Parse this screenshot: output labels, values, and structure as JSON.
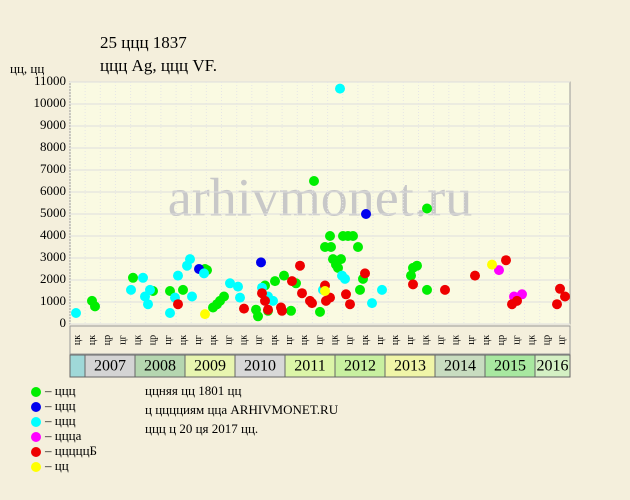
{
  "chart_data": {
    "type": "scatter",
    "title": "25 ццц 1837",
    "subtitle": "ццц Ag, ццц VF.",
    "y_label": "цц, цц",
    "watermark": "arhivmonet.ru",
    "xlim": [
      2006.7,
      2016.7
    ],
    "ylim": [
      0,
      11000
    ],
    "yticks": [
      0,
      1000,
      2000,
      3000,
      4000,
      5000,
      6000,
      7000,
      8000,
      9000,
      10000,
      11000
    ],
    "grid": true,
    "period_labels": [
      "цк",
      "цк",
      "цр",
      "цг",
      "цк",
      "цр",
      "цг",
      "цк",
      "цг",
      "цк",
      "цг",
      "цк",
      "цг",
      "цк",
      "цг",
      "цк",
      "цг",
      "цк",
      "цг",
      "цк",
      "цг",
      "цк",
      "цг",
      "цк",
      "цг",
      "цк",
      "цг",
      "цк",
      "цр",
      "цг",
      "цк",
      "цр",
      "цг"
    ],
    "years": [
      "2007",
      "2008",
      "2009",
      "2010",
      "2011",
      "2012",
      "2013",
      "2014",
      "2015",
      "2016"
    ],
    "notes": [
      "ццняя цц 1801 цц",
      "ц цццциям цца ARHIVMONET.RU",
      "ццц ц 20 ця 2017 цц."
    ],
    "series": [
      {
        "name": "– ццц",
        "color": "#00ee00",
        "x": [
          2007.14,
          2007.2,
          2007.96,
          2008.36,
          2008.7,
          2008.96,
          2009.4,
          2009.44,
          2009.56,
          2009.64,
          2009.7,
          2009.78,
          2010.42,
          2010.46,
          2010.66,
          2010.8,
          2010.98,
          2011.12,
          2011.22,
          2011.58,
          2011.7,
          2011.8,
          2011.9,
          2011.92,
          2011.96,
          2012.02,
          2012.06,
          2012.12,
          2012.16,
          2012.26,
          2012.36,
          2012.46,
          2012.5,
          2012.56,
          2013.52,
          2013.56,
          2013.64,
          2013.84,
          2013.84,
          2010.6
        ],
        "values": [
          1050,
          800,
          2100,
          1500,
          1500,
          1550,
          2500,
          2450,
          750,
          900,
          1050,
          1250,
          650,
          350,
          600,
          1950,
          2200,
          600,
          1850,
          6500,
          550,
          3500,
          4000,
          3500,
          2950,
          2700,
          2550,
          2950,
          4000,
          4000,
          4000,
          3500,
          1550,
          2050,
          2200,
          2550,
          2650,
          1550,
          5250,
          1750
        ]
      },
      {
        "name": "– ццц",
        "color": "#0000ee",
        "x": [
          2009.28,
          2010.52,
          2012.62
        ],
        "values": [
          2500,
          2800,
          5000
        ]
      },
      {
        "name": "– ццц",
        "color": "#00ffff",
        "x": [
          2006.82,
          2007.92,
          2008.16,
          2008.2,
          2008.26,
          2008.3,
          2008.7,
          2008.8,
          2008.86,
          2009.04,
          2009.1,
          2009.14,
          2009.38,
          2009.9,
          2010.06,
          2010.1,
          2010.54,
          2010.66,
          2010.76,
          2012.1,
          2012.14,
          2012.2,
          2012.74,
          2012.94,
          2011.76
        ],
        "values": [
          500,
          1550,
          2100,
          1250,
          900,
          1550,
          500,
          1200,
          2200,
          2650,
          2950,
          1250,
          2300,
          1850,
          1700,
          1200,
          1650,
          1250,
          1050,
          10700,
          2200,
          2050,
          950,
          1550,
          1550
        ]
      },
      {
        "name": "– ццца",
        "color": "#ff00ff",
        "x": [
          2015.28,
          2015.58,
          2015.74
        ],
        "values": [
          2450,
          1250,
          1350
        ]
      },
      {
        "name": "– цццццБ",
        "color": "#ee0000",
        "x": [
          2008.86,
          2010.18,
          2010.54,
          2010.6,
          2010.66,
          2010.92,
          2010.94,
          2011.14,
          2011.3,
          2011.34,
          2011.5,
          2011.54,
          2011.8,
          2011.82,
          2011.9,
          2012.22,
          2012.3,
          2012.6,
          2013.56,
          2014.2,
          2014.8,
          2015.42,
          2015.54,
          2015.64,
          2016.44,
          2016.5,
          2016.6
        ],
        "values": [
          900,
          700,
          1400,
          1050,
          650,
          750,
          600,
          1950,
          2650,
          1400,
          1050,
          950,
          1750,
          1050,
          1200,
          1350,
          900,
          2300,
          1800,
          1550,
          2200,
          2900,
          900,
          1050,
          900,
          1600,
          1250
        ]
      },
      {
        "name": "– цц",
        "color": "#ffff00",
        "x": [
          2009.4,
          2011.8,
          2015.14
        ],
        "values": [
          450,
          1500,
          2700
        ]
      }
    ]
  }
}
